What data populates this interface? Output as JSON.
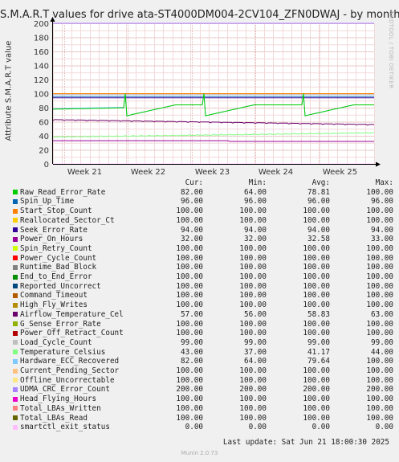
{
  "title": "S.M.A.R.T values for drive ata-ST4000DM004-2CV104_ZFN0DWAJ - by month",
  "watermark": "RRDTOOL / TOBI OETIKER",
  "last_update": "Last update: Sat Jun 21 18:00:30 2025",
  "footer": "Munin 2.0.73",
  "legend_headers": {
    "cur": "Cur:",
    "min": "Min:",
    "avg": "Avg:",
    "max": "Max:"
  },
  "chart_data": {
    "type": "line",
    "ylabel": "Attribute S.M.A.R.T value",
    "ylim": [
      0,
      200
    ],
    "yticks": [
      0,
      20,
      40,
      60,
      80,
      100,
      120,
      140,
      160,
      180,
      200
    ],
    "xticks": [
      "Week 21",
      "Week 22",
      "Week 23",
      "Week 24",
      "Week 25"
    ],
    "grid": true,
    "series": [
      {
        "name": "Raw_Read_Error_Rate",
        "color": "#00cc00",
        "cur": "82.00",
        "min": "64.00",
        "avg": "78.81",
        "max": "100.00"
      },
      {
        "name": "Spin_Up_Time",
        "color": "#0066b3",
        "cur": "96.00",
        "min": "96.00",
        "avg": "96.00",
        "max": "96.00"
      },
      {
        "name": "Start_Stop_Count",
        "color": "#ff8000",
        "cur": "100.00",
        "min": "100.00",
        "avg": "100.00",
        "max": "100.00"
      },
      {
        "name": "Reallocated_Sector_Ct",
        "color": "#ffcc00",
        "cur": "100.00",
        "min": "100.00",
        "avg": "100.00",
        "max": "100.00"
      },
      {
        "name": "Seek_Error_Rate",
        "color": "#330099",
        "cur": "94.00",
        "min": "94.00",
        "avg": "94.00",
        "max": "94.00"
      },
      {
        "name": "Power_On_Hours",
        "color": "#990099",
        "cur": "32.00",
        "min": "32.00",
        "avg": "32.58",
        "max": "33.00"
      },
      {
        "name": "Spin_Retry_Count",
        "color": "#ccff00",
        "cur": "100.00",
        "min": "100.00",
        "avg": "100.00",
        "max": "100.00"
      },
      {
        "name": "Power_Cycle_Count",
        "color": "#ff0000",
        "cur": "100.00",
        "min": "100.00",
        "avg": "100.00",
        "max": "100.00"
      },
      {
        "name": "Runtime_Bad_Block",
        "color": "#808080",
        "cur": "100.00",
        "min": "100.00",
        "avg": "100.00",
        "max": "100.00"
      },
      {
        "name": "End_to_End_Error",
        "color": "#008f00",
        "cur": "100.00",
        "min": "100.00",
        "avg": "100.00",
        "max": "100.00"
      },
      {
        "name": "Reported_Uncorrect",
        "color": "#00487d",
        "cur": "100.00",
        "min": "100.00",
        "avg": "100.00",
        "max": "100.00"
      },
      {
        "name": "Command_Timeout",
        "color": "#b35a00",
        "cur": "100.00",
        "min": "100.00",
        "avg": "100.00",
        "max": "100.00"
      },
      {
        "name": "High_Fly_Writes",
        "color": "#b38f00",
        "cur": "100.00",
        "min": "100.00",
        "avg": "100.00",
        "max": "100.00"
      },
      {
        "name": "Airflow_Temperature_Cel",
        "color": "#6b006b",
        "cur": "57.00",
        "min": "56.00",
        "avg": "58.83",
        "max": "63.00"
      },
      {
        "name": "G_Sense_Error_Rate",
        "color": "#8fb300",
        "cur": "100.00",
        "min": "100.00",
        "avg": "100.00",
        "max": "100.00"
      },
      {
        "name": "Power_Off_Retract_Count",
        "color": "#b30000",
        "cur": "100.00",
        "min": "100.00",
        "avg": "100.00",
        "max": "100.00"
      },
      {
        "name": "Load_Cycle_Count",
        "color": "#bebebe",
        "cur": "99.00",
        "min": "99.00",
        "avg": "99.00",
        "max": "99.00"
      },
      {
        "name": "Temperature_Celsius",
        "color": "#80ff80",
        "cur": "43.00",
        "min": "37.00",
        "avg": "41.17",
        "max": "44.00"
      },
      {
        "name": "Hardware_ECC_Recovered",
        "color": "#80c9ff",
        "cur": "82.00",
        "min": "64.00",
        "avg": "79.64",
        "max": "100.00"
      },
      {
        "name": "Current_Pending_Sector",
        "color": "#ffc080",
        "cur": "100.00",
        "min": "100.00",
        "avg": "100.00",
        "max": "100.00"
      },
      {
        "name": "Offline_Uncorrectable",
        "color": "#ffe680",
        "cur": "100.00",
        "min": "100.00",
        "avg": "100.00",
        "max": "100.00"
      },
      {
        "name": "UDMA_CRC_Error_Count",
        "color": "#aa80ff",
        "cur": "200.00",
        "min": "200.00",
        "avg": "200.00",
        "max": "200.00"
      },
      {
        "name": "Head_Flying_Hours",
        "color": "#ee00cc",
        "cur": "100.00",
        "min": "100.00",
        "avg": "100.00",
        "max": "100.00"
      },
      {
        "name": "Total_LBAs_Written",
        "color": "#ff8080",
        "cur": "100.00",
        "min": "100.00",
        "avg": "100.00",
        "max": "100.00"
      },
      {
        "name": "Total_LBAs_Read",
        "color": "#666600",
        "cur": "100.00",
        "min": "100.00",
        "avg": "100.00",
        "max": "100.00"
      },
      {
        "name": "smartctl_exit_status",
        "color": "#ffbfff",
        "cur": "0.00",
        "min": "0.00",
        "avg": "0.00",
        "max": "0.00"
      }
    ]
  }
}
